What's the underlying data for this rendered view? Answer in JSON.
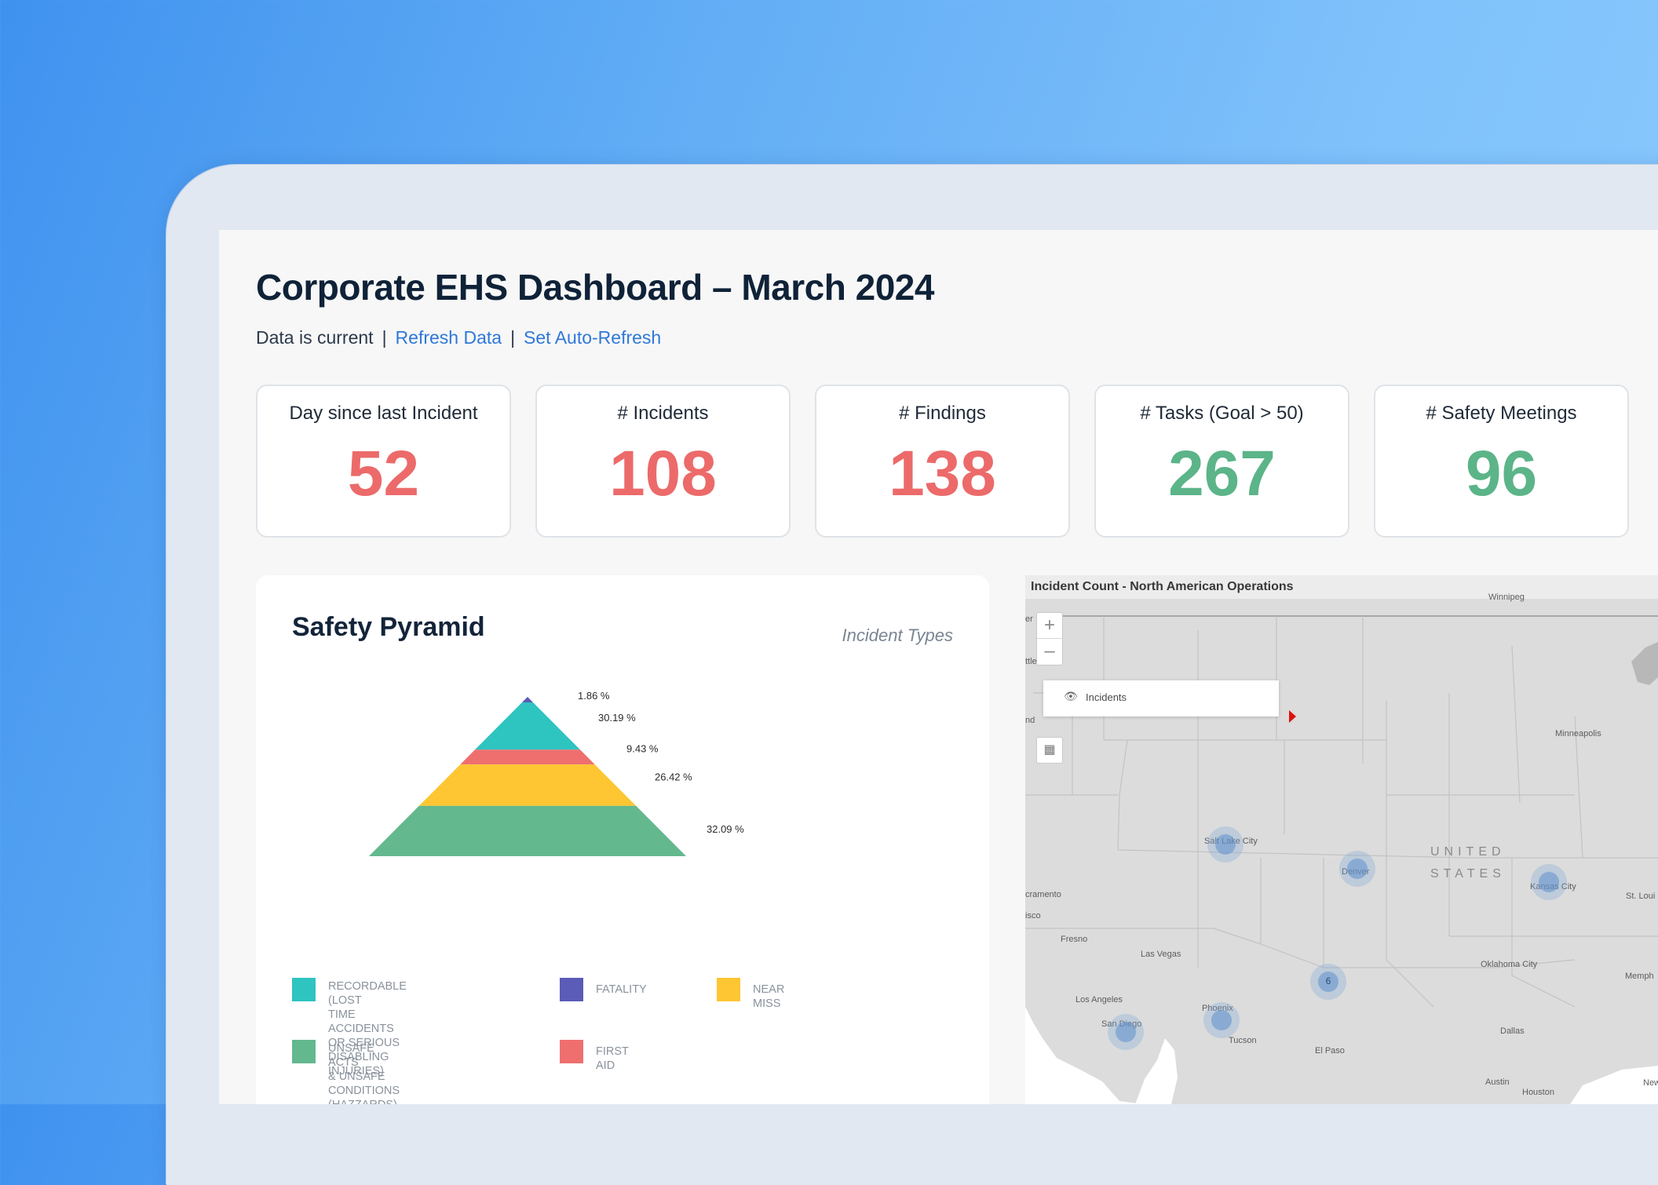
{
  "header": {
    "title": "Corporate EHS Dashboard – March 2024",
    "status_text": "Data is current",
    "refresh_link": "Refresh Data",
    "auto_refresh_link": "Set Auto-Refresh"
  },
  "kpis": [
    {
      "label": "Day since last Incident",
      "value": "52",
      "color": "#ec6a6a"
    },
    {
      "label": "# Incidents",
      "value": "108",
      "color": "#ec6a6a"
    },
    {
      "label": "# Findings",
      "value": "138",
      "color": "#ec6a6a"
    },
    {
      "label": "# Tasks (Goal > 50)",
      "value": "267",
      "color": "#5cb489"
    },
    {
      "label": "# Safety Meetings",
      "value": "96",
      "color": "#5cb489"
    }
  ],
  "pyramid": {
    "title": "Safety Pyramid",
    "subtitle": "Incident Types",
    "legend": [
      {
        "label": "Recordable (lost\ntime accidents or  serious\ndisabling injuries)",
        "color": "#2ec4c0"
      },
      {
        "label": "Fatality",
        "color": "#5b5bb8"
      },
      {
        "label": "Near miss",
        "color": "#fdc632"
      },
      {
        "label": "Unsafe acts\n& unsafe conditions\n(hazzards)",
        "color": "#63b88e"
      },
      {
        "label": "First aid",
        "color": "#ef6f6f"
      }
    ]
  },
  "chart_data": {
    "type": "pyramid",
    "title": "Safety Pyramid",
    "levels": [
      {
        "name": "Fatality",
        "percent": 1.86,
        "label": "1.86 %",
        "color": "#5b5bb8"
      },
      {
        "name": "Recordable (lost time accidents or serious disabling injuries)",
        "percent": 30.19,
        "label": "30.19 %",
        "color": "#2ec4c0"
      },
      {
        "name": "First aid",
        "percent": 9.43,
        "label": "9.43 %",
        "color": "#ef6f6f"
      },
      {
        "name": "Near miss",
        "percent": 26.42,
        "label": "26.42 %",
        "color": "#fdc632"
      },
      {
        "name": "Unsafe acts & unsafe conditions (hazzards)",
        "percent": 32.09,
        "label": "32.09 %",
        "color": "#63b88e"
      }
    ]
  },
  "map": {
    "title": "Incident Count - North American Operations",
    "zoom_in": "+",
    "zoom_out": "–",
    "layer_label": "Incidents",
    "region_line1": "UNITED",
    "region_line2": "STATES",
    "cities": [
      "Winnipeg",
      "Minneapolis",
      "Salt Lake City",
      "Denver",
      "Kansas City",
      "St. Loui",
      "Fresno",
      "Las Vegas",
      "Los Angeles",
      "San Diego",
      "Phoenix",
      "Tucson",
      "El Paso",
      "Oklahoma City",
      "Dallas",
      "Memph",
      "Austin",
      "Houston",
      "New",
      "cramento",
      "ttle",
      "nd",
      "isco",
      "er"
    ],
    "clusters": [
      {
        "label": ""
      },
      {
        "label": ""
      },
      {
        "label": ""
      },
      {
        "label": "6"
      },
      {
        "label": ""
      },
      {
        "label": ""
      }
    ]
  }
}
